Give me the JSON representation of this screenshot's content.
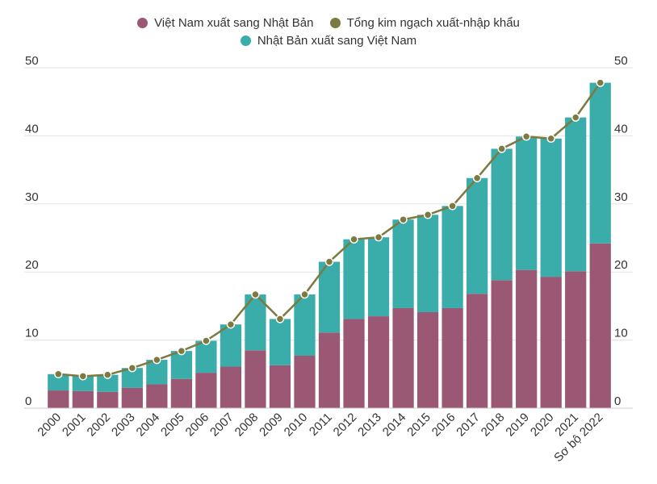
{
  "chart_data": {
    "type": "bar",
    "stacked": true,
    "categories": [
      "2000",
      "2001",
      "2002",
      "2003",
      "2004",
      "2005",
      "2006",
      "2007",
      "2008",
      "2009",
      "2010",
      "2011",
      "2012",
      "2013",
      "2014",
      "2015",
      "2016",
      "2017",
      "2018",
      "2019",
      "2020",
      "2021",
      "Sơ bộ 2022"
    ],
    "series": [
      {
        "name": "Việt Nam xuất sang Nhật Bản",
        "type": "bar",
        "color": "#9B5874",
        "values": [
          2.6,
          2.5,
          2.4,
          3.0,
          3.5,
          4.3,
          5.2,
          6.1,
          8.5,
          6.3,
          7.7,
          11.1,
          13.1,
          13.5,
          14.7,
          14.1,
          14.7,
          16.8,
          18.8,
          20.3,
          19.3,
          20.1,
          24.2
        ]
      },
      {
        "name": "Nhật Bản xuất sang Việt Nam",
        "type": "bar",
        "color": "#3AACA9",
        "values": [
          2.4,
          2.2,
          2.5,
          2.9,
          3.6,
          4.1,
          4.7,
          6.2,
          8.2,
          6.8,
          9.0,
          10.4,
          11.7,
          11.6,
          13.0,
          14.3,
          15.0,
          17.0,
          19.3,
          19.6,
          20.3,
          22.6,
          23.6
        ]
      },
      {
        "name": "Tổng kim ngạch xuất-nhập khẩu",
        "type": "line",
        "color": "#7C7A40",
        "values": [
          5.0,
          4.7,
          4.9,
          5.9,
          7.1,
          8.4,
          9.9,
          12.3,
          16.7,
          13.1,
          16.7,
          21.5,
          24.8,
          25.1,
          27.7,
          28.4,
          29.7,
          33.8,
          38.1,
          39.9,
          39.6,
          42.7,
          47.8
        ]
      }
    ],
    "ylim": [
      0,
      50
    ],
    "yticks": [
      "0",
      "10",
      "20",
      "30",
      "40",
      "50"
    ],
    "grid": true,
    "legend": "top-center",
    "xlabel": "",
    "ylabel": ""
  }
}
